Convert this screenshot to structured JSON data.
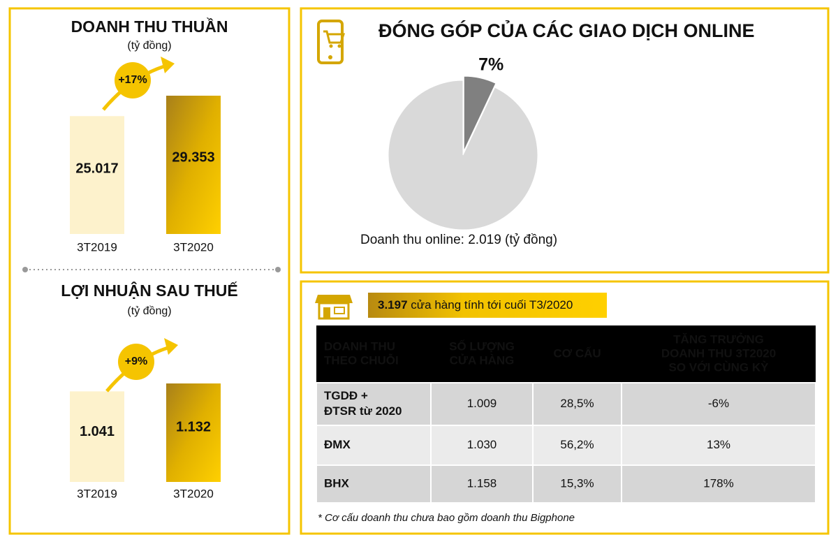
{
  "chart_data": [
    {
      "type": "bar",
      "title": "DOANH THU THUẦN",
      "subtitle": "(tỷ đồng)",
      "categories": [
        "3T2019",
        "3T2020"
      ],
      "values": [
        25017,
        29353
      ],
      "value_labels": [
        "25.017",
        "29.353"
      ],
      "colors": [
        "#fdf2cc",
        "#d9a800"
      ],
      "annotation": "+17%"
    },
    {
      "type": "bar",
      "title": "LỢI NHUẬN SAU THUẾ",
      "subtitle": "(tỷ đồng)",
      "categories": [
        "3T2019",
        "3T2020"
      ],
      "values": [
        1041,
        1132
      ],
      "value_labels": [
        "1.041",
        "1.132"
      ],
      "colors": [
        "#fdf2cc",
        "#d9a800"
      ],
      "annotation": "+9%"
    },
    {
      "type": "pie",
      "title": "ĐÓNG GÓP CỦA CÁC GIAO DỊCH ONLINE",
      "values": [
        7,
        93
      ],
      "value_labels": [
        "7%",
        null
      ],
      "colors": [
        "#808080",
        "#d9d9d9"
      ],
      "annotation": "Doanh thu online: 2.019 (tỷ đồng)"
    }
  ],
  "table": {
    "banner": {
      "count": "3.197",
      "text": "cửa hàng tính tới cuối T3/2020"
    },
    "header": [
      [
        "DOANH THU",
        "THEO CHUỖI"
      ],
      [
        "SỐ LƯỢNG",
        "CỬA HÀNG"
      ],
      [
        "CƠ CẤU"
      ],
      [
        "TĂNG TRƯỞNG",
        "DOANH THU 3T2020",
        "SO VỚI CÙNG KỲ"
      ]
    ],
    "rows": [
      [
        [
          "TGDĐ +",
          "ĐTSR từ 2020"
        ],
        "1.009",
        "28,5%",
        "-6%"
      ],
      [
        [
          "ĐMX"
        ],
        "1.030",
        "56,2%",
        "13%"
      ],
      [
        [
          "BHX"
        ],
        "1.158",
        "15,3%",
        "178%"
      ]
    ],
    "footnote": "* Cơ cấu doanh thu chưa bao gồm doanh thu Bigphone"
  }
}
